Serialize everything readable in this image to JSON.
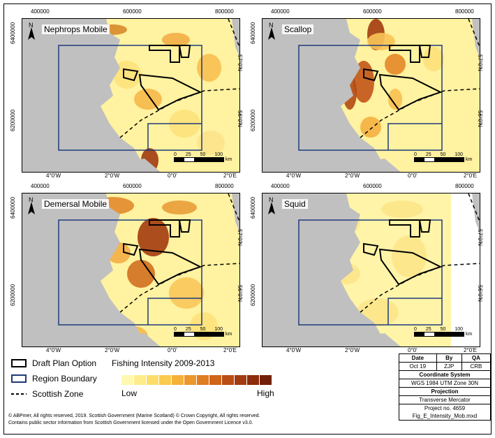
{
  "panels": [
    {
      "title": "Nephrops Mobile",
      "color_key": "nephrops"
    },
    {
      "title": "Scallop",
      "color_key": "scallop"
    },
    {
      "title": "Demersal Mobile",
      "color_key": "demersal"
    },
    {
      "title": "Squid",
      "color_key": "squid"
    }
  ],
  "axes": {
    "easting_ticks": [
      "400000",
      "600000",
      "800000"
    ],
    "northing_ticks": [
      "6400000",
      "6200000"
    ],
    "lon_ticks": [
      "4°0'W",
      "2°0'W",
      "0°0'",
      "2°0'E"
    ],
    "lat_ticks": [
      "57°0'N",
      "56°0'N"
    ]
  },
  "scalebar": {
    "labels": [
      "0",
      "25",
      "50",
      "100"
    ],
    "unit": "km"
  },
  "north_label": "N",
  "legend": {
    "draft_plan": "Draft Plan Option",
    "region_boundary": "Region Boundary",
    "scottish_zone": "Scottish Zone",
    "intensity_title": "Fishing Intensity 2009-2013",
    "low": "Low",
    "high": "High",
    "ramp_colors": [
      "#fff8b0",
      "#feec8a",
      "#fddd6a",
      "#fbca4e",
      "#f5b13a",
      "#eb972d",
      "#df7d22",
      "#cf641a",
      "#ba4d14",
      "#a33b10",
      "#8b2c0c",
      "#73200a"
    ]
  },
  "info": {
    "date_label": "Date",
    "by_label": "By",
    "qa_label": "QA",
    "date": "Oct 19",
    "by": "ZJP",
    "qa": "CRB",
    "coord_label": "Coordinate System",
    "coord": "WGS 1984 UTM Zone 30N",
    "proj_label": "Projection",
    "proj": "Transverse Mercator",
    "project_no": "Project no. 4659",
    "file": "Fig_E_Intensity_Mob.mxd"
  },
  "footer": {
    "line1": "© ABPmer, All rights reserved, 2019. Scottish Government (Marine Scotland) © Crown Copyright, All rights reserved.",
    "line2": "Contains public sector information from Scottish Government  licensed under the Open Government Licence v3.0."
  },
  "colors": {
    "land": "#c0c0c0",
    "region": "#1f3a7a",
    "plan": "#000000",
    "low": "#fff3a0",
    "high": "#7a2a08"
  }
}
